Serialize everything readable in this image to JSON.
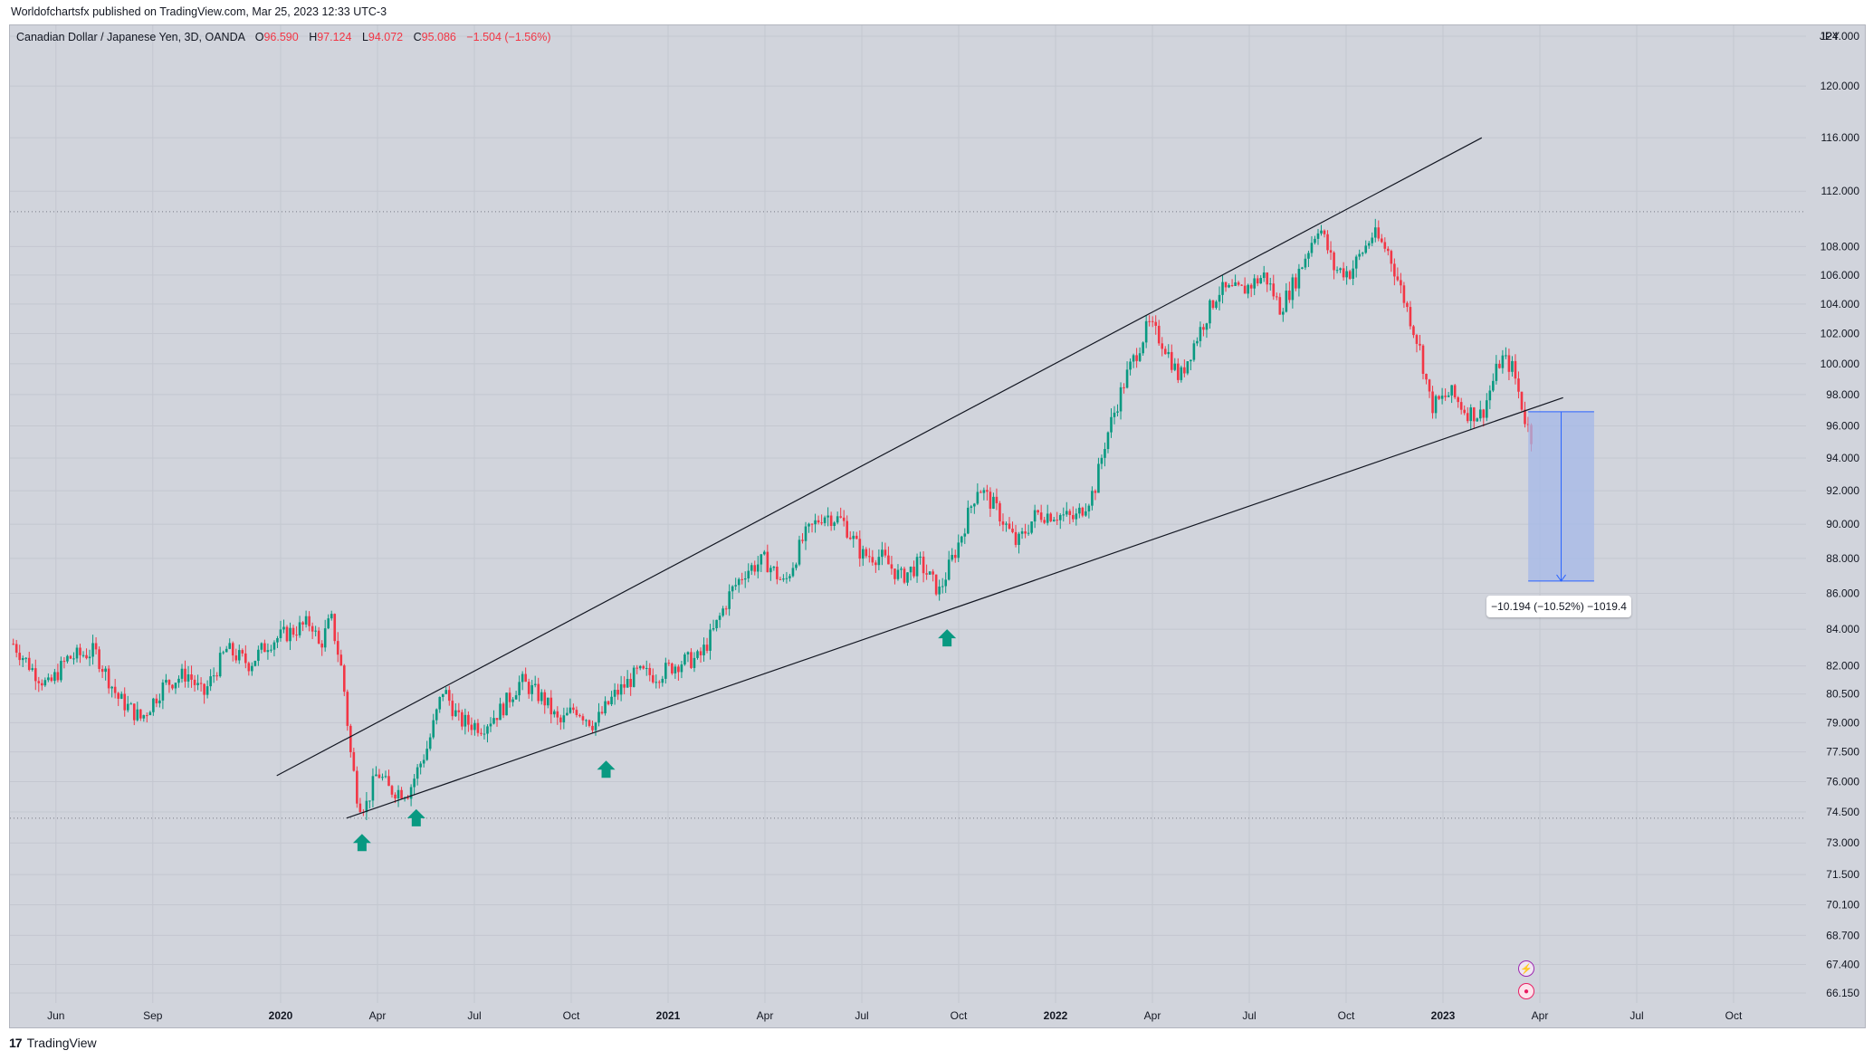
{
  "header": {
    "published_text": "Worldofchartsfx published on TradingView.com, Mar 25, 2023 12:33 UTC-3"
  },
  "legend": {
    "symbol": "Canadian Dollar / Japanese Yen, 3D, OANDA",
    "open_label": "O",
    "open": "96.590",
    "high_label": "H",
    "high": "97.124",
    "low_label": "L",
    "low": "94.072",
    "close_label": "C",
    "close": "95.086",
    "change": "−1.504 (−1.56%)"
  },
  "measure": {
    "text": "−10.194 (−10.52%) −1019.4"
  },
  "footer": {
    "brand": "TradingView",
    "logo_mark": "17"
  },
  "colors": {
    "background": "#d1d4dc",
    "up": "#089981",
    "down": "#f23645",
    "trendline": "#131722",
    "measure_fill": "#a4b8e8",
    "measure_line": "#2962ff",
    "arrow": "#089981"
  },
  "chart_data": {
    "type": "candlestick",
    "currency_label": "JPY",
    "y_ticks": [
      "124.000",
      "120.000",
      "116.000",
      "112.000",
      "108.000",
      "106.000",
      "104.000",
      "102.000",
      "100.000",
      "98.000",
      "96.000",
      "94.000",
      "92.000",
      "90.000",
      "88.000",
      "86.000",
      "84.000",
      "82.000",
      "80.500",
      "79.000",
      "77.500",
      "76.000",
      "74.500",
      "73.000",
      "71.500",
      "70.100",
      "68.700",
      "67.400",
      "66.150"
    ],
    "x_ticks": [
      {
        "label": "Jun",
        "t": 2019.42,
        "bold": false
      },
      {
        "label": "Sep",
        "t": 2019.67,
        "bold": false
      },
      {
        "label": "2020",
        "t": 2020.0,
        "bold": true
      },
      {
        "label": "Apr",
        "t": 2020.25,
        "bold": false
      },
      {
        "label": "Jul",
        "t": 2020.5,
        "bold": false
      },
      {
        "label": "Oct",
        "t": 2020.75,
        "bold": false
      },
      {
        "label": "2021",
        "t": 2021.0,
        "bold": true
      },
      {
        "label": "Apr",
        "t": 2021.25,
        "bold": false
      },
      {
        "label": "Jul",
        "t": 2021.5,
        "bold": false
      },
      {
        "label": "Oct",
        "t": 2021.75,
        "bold": false
      },
      {
        "label": "2022",
        "t": 2022.0,
        "bold": true
      },
      {
        "label": "Apr",
        "t": 2022.25,
        "bold": false
      },
      {
        "label": "Jul",
        "t": 2022.5,
        "bold": false
      },
      {
        "label": "Oct",
        "t": 2022.75,
        "bold": false
      },
      {
        "label": "2023",
        "t": 2023.0,
        "bold": true
      },
      {
        "label": "Apr",
        "t": 2023.25,
        "bold": false
      },
      {
        "label": "Jul",
        "t": 2023.5,
        "bold": false
      },
      {
        "label": "Oct",
        "t": 2023.75,
        "bold": false
      }
    ],
    "price_path": [
      [
        2019.31,
        83.2
      ],
      [
        2019.36,
        81.8
      ],
      [
        2019.4,
        80.9
      ],
      [
        2019.45,
        82.4
      ],
      [
        2019.52,
        82.8
      ],
      [
        2019.58,
        80.3
      ],
      [
        2019.64,
        79.2
      ],
      [
        2019.7,
        81.0
      ],
      [
        2019.76,
        81.6
      ],
      [
        2019.8,
        80.4
      ],
      [
        2019.86,
        82.9
      ],
      [
        2019.92,
        82.1
      ],
      [
        2019.97,
        83.3
      ],
      [
        2020.03,
        83.9
      ],
      [
        2020.08,
        84.4
      ],
      [
        2020.1,
        83.0
      ],
      [
        2020.13,
        84.6
      ],
      [
        2020.16,
        81.5
      ],
      [
        2020.18,
        77.5
      ],
      [
        2020.2,
        75.0
      ],
      [
        2020.22,
        74.8
      ],
      [
        2020.25,
        76.5
      ],
      [
        2020.28,
        75.6
      ],
      [
        2020.33,
        75.5
      ],
      [
        2020.38,
        77.8
      ],
      [
        2020.42,
        80.8
      ],
      [
        2020.46,
        79.1
      ],
      [
        2020.52,
        78.8
      ],
      [
        2020.57,
        79.7
      ],
      [
        2020.62,
        81.2
      ],
      [
        2020.68,
        80.2
      ],
      [
        2020.72,
        78.9
      ],
      [
        2020.76,
        79.8
      ],
      [
        2020.81,
        78.9
      ],
      [
        2020.86,
        80.4
      ],
      [
        2020.92,
        81.6
      ],
      [
        2020.97,
        81.5
      ],
      [
        2021.03,
        82.2
      ],
      [
        2021.08,
        82.4
      ],
      [
        2021.12,
        84.0
      ],
      [
        2021.16,
        86.0
      ],
      [
        2021.2,
        87.3
      ],
      [
        2021.25,
        87.9
      ],
      [
        2021.3,
        86.5
      ],
      [
        2021.35,
        89.2
      ],
      [
        2021.4,
        90.6
      ],
      [
        2021.45,
        90.2
      ],
      [
        2021.5,
        88.2
      ],
      [
        2021.55,
        88.1
      ],
      [
        2021.6,
        86.9
      ],
      [
        2021.65,
        87.7
      ],
      [
        2021.7,
        86.1
      ],
      [
        2021.75,
        88.9
      ],
      [
        2021.8,
        92.3
      ],
      [
        2021.85,
        90.8
      ],
      [
        2021.9,
        88.8
      ],
      [
        2021.95,
        90.6
      ],
      [
        2022.0,
        90.6
      ],
      [
        2022.05,
        90.3
      ],
      [
        2022.1,
        92.0
      ],
      [
        2022.13,
        95.2
      ],
      [
        2022.18,
        99.0
      ],
      [
        2022.24,
        102.6
      ],
      [
        2022.28,
        101.3
      ],
      [
        2022.32,
        99.0
      ],
      [
        2022.36,
        101.5
      ],
      [
        2022.42,
        104.9
      ],
      [
        2022.48,
        104.9
      ],
      [
        2022.54,
        106.0
      ],
      [
        2022.58,
        103.7
      ],
      [
        2022.62,
        105.7
      ],
      [
        2022.68,
        109.6
      ],
      [
        2022.72,
        106.4
      ],
      [
        2022.76,
        106.2
      ],
      [
        2022.82,
        108.9
      ],
      [
        2022.86,
        107.6
      ],
      [
        2022.9,
        104.3
      ],
      [
        2022.94,
        101.0
      ],
      [
        2022.97,
        97.2
      ],
      [
        2023.02,
        98.1
      ],
      [
        2023.06,
        96.9
      ],
      [
        2023.1,
        96.7
      ],
      [
        2023.15,
        100.4
      ],
      [
        2023.18,
        99.7
      ],
      [
        2023.21,
        96.6
      ],
      [
        2023.23,
        95.1
      ]
    ],
    "trendlines": [
      {
        "name": "upper",
        "from": [
          2019.99,
          76.3
        ],
        "to": [
          2023.1,
          116.0
        ]
      },
      {
        "name": "lower",
        "from": [
          2020.17,
          74.2
        ],
        "to": [
          2023.31,
          97.8
        ]
      }
    ],
    "horizontal_levels": [
      110.5,
      74.2
    ],
    "support_arrows": [
      {
        "t": 2020.21,
        "price": 73.0
      },
      {
        "t": 2020.35,
        "price": 74.2
      },
      {
        "t": 2020.84,
        "price": 76.6
      },
      {
        "t": 2021.72,
        "price": 83.5
      }
    ],
    "measure_range": {
      "t_start": 2023.22,
      "t_end": 2023.39,
      "price_top": 96.9,
      "price_bottom": 86.7
    }
  }
}
